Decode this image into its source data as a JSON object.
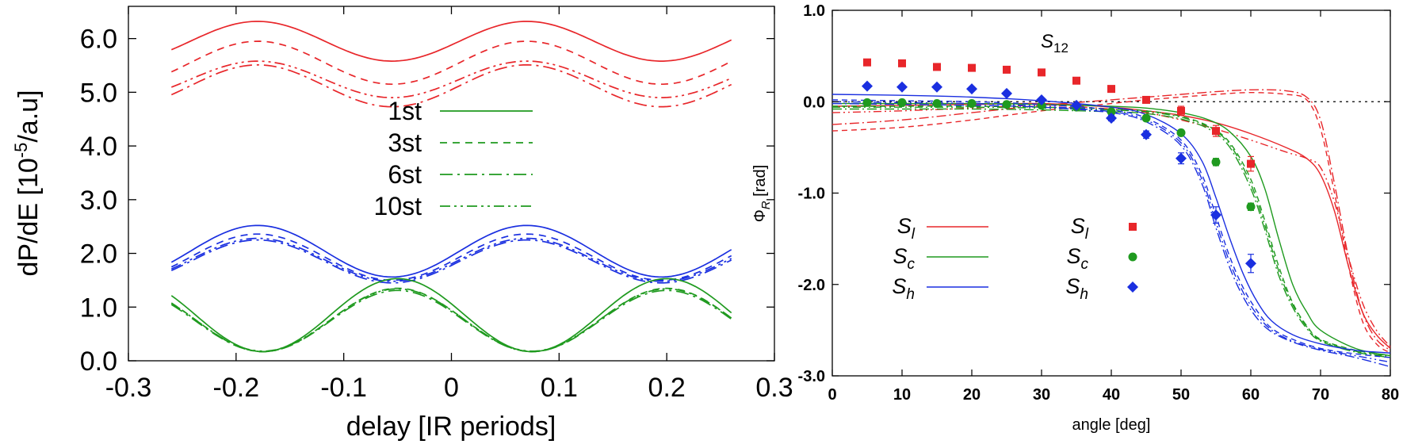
{
  "chart_data": [
    {
      "type": "line",
      "xlabel": "delay [IR periods]",
      "ylabel": "dP/dE [10-5/a.u]",
      "ylabel_parts": {
        "pre": "dP/dE [10",
        "sup": "-5",
        "post": "/a.u]"
      },
      "xlim": [
        -0.3,
        0.3
      ],
      "ylim": [
        0.0,
        6.6
      ],
      "xticks": [
        -0.3,
        -0.2,
        -0.1,
        0,
        0.1,
        0.2,
        0.3
      ],
      "xtick_labels": [
        "-0.3",
        "-0.2",
        "-0.1",
        "0",
        "0.1",
        "0.2",
        "0.3"
      ],
      "yticks": [
        0,
        1,
        2,
        3,
        4,
        5,
        6
      ],
      "ytick_labels": [
        "0.0",
        "1.0",
        "2.0",
        "3.0",
        "4.0",
        "5.0",
        "6.0"
      ],
      "grid": false,
      "legend_position": "center",
      "legend": [
        {
          "label": "1st",
          "dash": "solid"
        },
        {
          "label": "3st",
          "dash": "dashed"
        },
        {
          "label": "6st",
          "dash": "dashdot"
        },
        {
          "label": "10st",
          "dash": "dashdotdot"
        }
      ],
      "x_range": [
        -0.26,
        0.26
      ],
      "color_groups": [
        {
          "color": "#e8262a",
          "shape": "cosine",
          "period": 0.25,
          "peak_x": 0.07,
          "series": [
            {
              "dash": "solid",
              "mean": 5.95,
              "amp": 0.37
            },
            {
              "dash": "dashed",
              "mean": 5.55,
              "amp": 0.4
            },
            {
              "dash": "dashdot",
              "mean": 5.12,
              "amp": 0.39
            },
            {
              "dash": "dashdotdot",
              "mean": 5.24,
              "amp": 0.34
            }
          ]
        },
        {
          "color": "#1a2fe0",
          "shape": "cosine",
          "period": 0.25,
          "peak_x": 0.07,
          "series": [
            {
              "dash": "solid",
              "mean": 2.04,
              "amp": 0.48
            },
            {
              "dash": "dashed",
              "mean": 1.93,
              "amp": 0.43
            },
            {
              "dash": "dashdot",
              "mean": 1.85,
              "amp": 0.4
            },
            {
              "dash": "dashdotdot",
              "mean": 1.88,
              "amp": 0.4
            }
          ]
        },
        {
          "color": "#1f9a1f",
          "shape": "cosine",
          "period": 0.25,
          "peak_x": -0.05,
          "series": [
            {
              "dash": "solid",
              "mean": 0.85,
              "amp": 0.68
            },
            {
              "dash": "dashed",
              "mean": 0.76,
              "amp": 0.59
            },
            {
              "dash": "dashdot",
              "mean": 0.74,
              "amp": 0.57
            },
            {
              "dash": "dashdotdot",
              "mean": 0.76,
              "amp": 0.58
            }
          ]
        }
      ],
      "legend_color": "#1f9a1f"
    },
    {
      "type": "scatter",
      "xlabel": "angle [deg]",
      "ylabel": "ΦR [rad]",
      "ylabel_parts": {
        "main": "Φ",
        "sub": "R",
        "post": " [rad]"
      },
      "xlim": [
        0,
        80
      ],
      "ylim": [
        -3.0,
        1.0
      ],
      "xticks": [
        0,
        10,
        20,
        30,
        40,
        50,
        60,
        70,
        80
      ],
      "xtick_labels": [
        "0",
        "10",
        "20",
        "30",
        "40",
        "50",
        "60",
        "70",
        "80"
      ],
      "yticks": [
        -3,
        -2,
        -1,
        0,
        1
      ],
      "ytick_labels": [
        "-3.0",
        "-2.0",
        "-1.0",
        "0.0",
        "1.0"
      ],
      "grid": false,
      "zero_line": "dotted",
      "annotation": {
        "main": "S",
        "sub": "12"
      },
      "legend_lines": [
        {
          "main": "S",
          "sub": "l",
          "color": "#e8262a"
        },
        {
          "main": "S",
          "sub": "c",
          "color": "#1f9a1f"
        },
        {
          "main": "S",
          "sub": "h",
          "color": "#1a2fe0"
        }
      ],
      "legend_points": [
        {
          "main": "S",
          "sub": "l",
          "color": "#e8262a",
          "marker": "square"
        },
        {
          "main": "S",
          "sub": "c",
          "color": "#1f9a1f",
          "marker": "circle"
        },
        {
          "main": "S",
          "sub": "h",
          "color": "#1a2fe0",
          "marker": "diamond"
        }
      ],
      "points": [
        {
          "name": "Sl",
          "color": "#e8262a",
          "marker": "square",
          "x": [
            5,
            10,
            15,
            20,
            25,
            30,
            35,
            40,
            45,
            50,
            55,
            60
          ],
          "y": [
            0.43,
            0.42,
            0.38,
            0.37,
            0.35,
            0.32,
            0.23,
            0.14,
            0.02,
            -0.1,
            -0.32,
            -0.68
          ],
          "err": [
            0.02,
            0.02,
            0.02,
            0.02,
            0.02,
            0.02,
            0.02,
            0.03,
            0.03,
            0.05,
            0.06,
            0.08
          ]
        },
        {
          "name": "Sc",
          "color": "#1f9a1f",
          "marker": "circle",
          "x": [
            5,
            10,
            15,
            20,
            25,
            30,
            35,
            40,
            45,
            50,
            55,
            60
          ],
          "y": [
            -0.01,
            -0.01,
            -0.02,
            -0.02,
            -0.03,
            -0.04,
            -0.06,
            -0.11,
            -0.18,
            -0.34,
            -0.66,
            -1.15
          ],
          "err": [
            0.02,
            0.02,
            0.02,
            0.02,
            0.02,
            0.02,
            0.02,
            0.02,
            0.03,
            0.03,
            0.04,
            0.04
          ]
        },
        {
          "name": "Sh",
          "color": "#1a2fe0",
          "marker": "diamond",
          "x": [
            5,
            10,
            15,
            20,
            25,
            30,
            35,
            40,
            45,
            50,
            55,
            60
          ],
          "y": [
            0.17,
            0.16,
            0.16,
            0.14,
            0.09,
            0.02,
            -0.04,
            -0.18,
            -0.36,
            -0.62,
            -1.24,
            -1.77
          ],
          "err": [
            0.02,
            0.02,
            0.02,
            0.02,
            0.02,
            0.02,
            0.02,
            0.03,
            0.04,
            0.06,
            0.09,
            0.1
          ]
        }
      ],
      "curves": [
        {
          "color": "#e8262a",
          "dash": "solid",
          "x": [
            0,
            10,
            20,
            30,
            40,
            45,
            50,
            55,
            60,
            65,
            68,
            70,
            72,
            74,
            76,
            78,
            80
          ],
          "y": [
            -0.05,
            -0.04,
            -0.03,
            -0.02,
            -0.06,
            -0.1,
            -0.15,
            -0.23,
            -0.35,
            -0.5,
            -0.62,
            -0.8,
            -1.2,
            -1.8,
            -2.3,
            -2.55,
            -2.7
          ]
        },
        {
          "color": "#e8262a",
          "dash": "dashed",
          "x": [
            0,
            10,
            20,
            30,
            40,
            45,
            50,
            55,
            60,
            65,
            68,
            70,
            72,
            74,
            76,
            78,
            80
          ],
          "y": [
            -0.32,
            -0.28,
            -0.2,
            -0.1,
            -0.02,
            0.02,
            0.05,
            0.08,
            0.1,
            0.08,
            0.02,
            -0.3,
            -1.0,
            -1.8,
            -2.4,
            -2.65,
            -2.75
          ]
        },
        {
          "color": "#e8262a",
          "dash": "dashdot",
          "x": [
            0,
            10,
            20,
            30,
            40,
            45,
            50,
            55,
            60,
            65,
            68,
            70,
            72,
            74,
            76,
            78,
            80
          ],
          "y": [
            -0.25,
            -0.2,
            -0.12,
            -0.04,
            0.02,
            0.05,
            0.08,
            0.11,
            0.13,
            0.12,
            0.05,
            -0.2,
            -0.9,
            -1.7,
            -2.3,
            -2.6,
            -2.72
          ]
        },
        {
          "color": "#e8262a",
          "dash": "dashdotdot",
          "x": [
            0,
            10,
            20,
            30,
            40,
            45,
            50,
            55,
            60,
            65,
            68,
            70,
            72,
            74,
            76,
            78,
            80
          ],
          "y": [
            -0.12,
            -0.1,
            -0.07,
            -0.04,
            -0.08,
            -0.12,
            -0.2,
            -0.3,
            -0.42,
            -0.55,
            -0.62,
            -0.72,
            -1.1,
            -1.7,
            -2.2,
            -2.5,
            -2.68
          ]
        },
        {
          "color": "#1f9a1f",
          "dash": "solid",
          "x": [
            0,
            10,
            20,
            30,
            40,
            45,
            50,
            54,
            57,
            60,
            62,
            64,
            66,
            68,
            70,
            75,
            80
          ],
          "y": [
            -0.02,
            -0.02,
            -0.02,
            -0.03,
            -0.05,
            -0.07,
            -0.12,
            -0.2,
            -0.33,
            -0.6,
            -0.95,
            -1.5,
            -2.0,
            -2.3,
            -2.5,
            -2.7,
            -2.78
          ]
        },
        {
          "color": "#1f9a1f",
          "dash": "dashed",
          "x": [
            0,
            10,
            20,
            30,
            40,
            45,
            50,
            54,
            57,
            60,
            62,
            64,
            66,
            68,
            70,
            75,
            80
          ],
          "y": [
            -0.05,
            -0.05,
            -0.05,
            -0.06,
            -0.08,
            -0.1,
            -0.16,
            -0.27,
            -0.45,
            -0.85,
            -1.3,
            -1.8,
            -2.2,
            -2.45,
            -2.6,
            -2.72,
            -2.78
          ]
        },
        {
          "color": "#1f9a1f",
          "dash": "dashdot",
          "x": [
            0,
            10,
            20,
            30,
            40,
            45,
            50,
            54,
            57,
            60,
            62,
            64,
            66,
            68,
            70,
            75,
            80
          ],
          "y": [
            -0.08,
            -0.08,
            -0.08,
            -0.09,
            -0.11,
            -0.13,
            -0.19,
            -0.3,
            -0.5,
            -0.95,
            -1.4,
            -1.9,
            -2.25,
            -2.48,
            -2.62,
            -2.74,
            -2.8
          ]
        },
        {
          "color": "#1f9a1f",
          "dash": "dashdotdot",
          "x": [
            0,
            10,
            20,
            30,
            40,
            45,
            50,
            54,
            57,
            60,
            62,
            64,
            66,
            68,
            70,
            75,
            80
          ],
          "y": [
            -0.06,
            -0.06,
            -0.06,
            -0.07,
            -0.09,
            -0.11,
            -0.17,
            -0.28,
            -0.47,
            -0.9,
            -1.35,
            -1.85,
            -2.22,
            -2.46,
            -2.61,
            -2.73,
            -2.79
          ]
        },
        {
          "color": "#1a2fe0",
          "dash": "solid",
          "x": [
            0,
            10,
            20,
            30,
            40,
            45,
            50,
            53,
            55,
            57,
            59,
            61,
            63,
            66,
            70,
            75,
            80
          ],
          "y": [
            0.08,
            0.07,
            0.05,
            0.01,
            -0.06,
            -0.14,
            -0.35,
            -0.65,
            -1.05,
            -1.5,
            -1.9,
            -2.2,
            -2.4,
            -2.55,
            -2.65,
            -2.72,
            -2.75
          ]
        },
        {
          "color": "#1a2fe0",
          "dash": "dashed",
          "x": [
            0,
            10,
            20,
            30,
            40,
            45,
            50,
            53,
            55,
            57,
            59,
            61,
            63,
            66,
            70,
            75,
            80
          ],
          "y": [
            0.02,
            0.01,
            0.0,
            -0.03,
            -0.09,
            -0.18,
            -0.42,
            -0.8,
            -1.25,
            -1.7,
            -2.05,
            -2.3,
            -2.48,
            -2.6,
            -2.7,
            -2.76,
            -2.8
          ]
        },
        {
          "color": "#1a2fe0",
          "dash": "dashdot",
          "x": [
            0,
            10,
            20,
            30,
            40,
            45,
            50,
            53,
            55,
            57,
            59,
            61,
            63,
            66,
            70,
            75,
            80
          ],
          "y": [
            -0.02,
            -0.03,
            -0.04,
            -0.06,
            -0.12,
            -0.22,
            -0.48,
            -0.9,
            -1.38,
            -1.82,
            -2.15,
            -2.38,
            -2.52,
            -2.63,
            -2.72,
            -2.8,
            -2.9
          ]
        },
        {
          "color": "#1a2fe0",
          "dash": "dashdotdot",
          "x": [
            0,
            10,
            20,
            30,
            40,
            45,
            50,
            53,
            55,
            57,
            59,
            61,
            63,
            66,
            70,
            75,
            80
          ],
          "y": [
            0.0,
            -0.01,
            -0.02,
            -0.05,
            -0.11,
            -0.2,
            -0.45,
            -0.85,
            -1.32,
            -1.76,
            -2.1,
            -2.34,
            -2.5,
            -2.62,
            -2.71,
            -2.78,
            -2.85
          ]
        }
      ]
    }
  ]
}
